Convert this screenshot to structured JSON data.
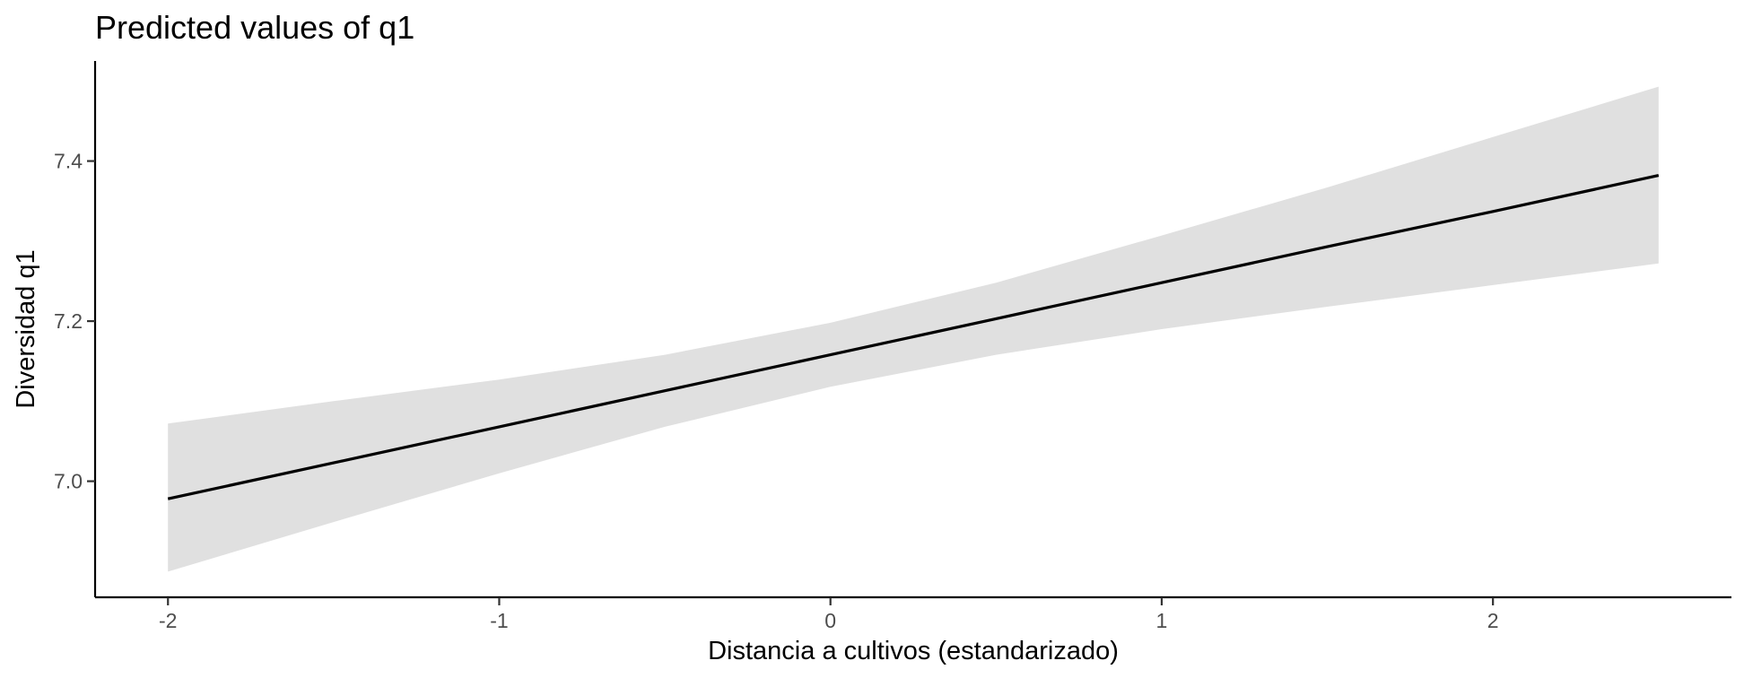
{
  "chart_data": {
    "type": "line",
    "title": "Predicted values of q1",
    "xlabel": "Distancia a cultivos (estandarizado)",
    "ylabel": "Diversidad q1",
    "xlim": [
      -2.22,
      2.72
    ],
    "ylim": [
      6.855,
      7.525
    ],
    "x_ticks": [
      -2,
      -1,
      0,
      1,
      2
    ],
    "x_tick_labels": [
      "-2",
      "-1",
      "0",
      "1",
      "2"
    ],
    "y_ticks": [
      7.0,
      7.2,
      7.4
    ],
    "y_tick_labels": [
      "7.0",
      "7.2",
      "7.4"
    ],
    "grid": false,
    "legend": "none",
    "series": [
      {
        "x": [
          -2.0,
          -1.5,
          -1.0,
          -0.5,
          0.0,
          0.5,
          1.0,
          1.5,
          2.0,
          2.5
        ],
        "predicted": [
          6.978,
          7.023,
          7.068,
          7.113,
          7.158,
          7.203,
          7.248,
          7.293,
          7.337,
          7.382
        ],
        "conf_low": [
          6.887,
          6.949,
          7.01,
          7.068,
          7.118,
          7.158,
          7.19,
          7.218,
          7.245,
          7.272
        ],
        "conf_high": [
          7.072,
          7.1,
          7.127,
          7.158,
          7.198,
          7.248,
          7.307,
          7.367,
          7.43,
          7.493
        ],
        "color": "#000000",
        "ribbon_color": "#e0e0e0"
      }
    ]
  }
}
